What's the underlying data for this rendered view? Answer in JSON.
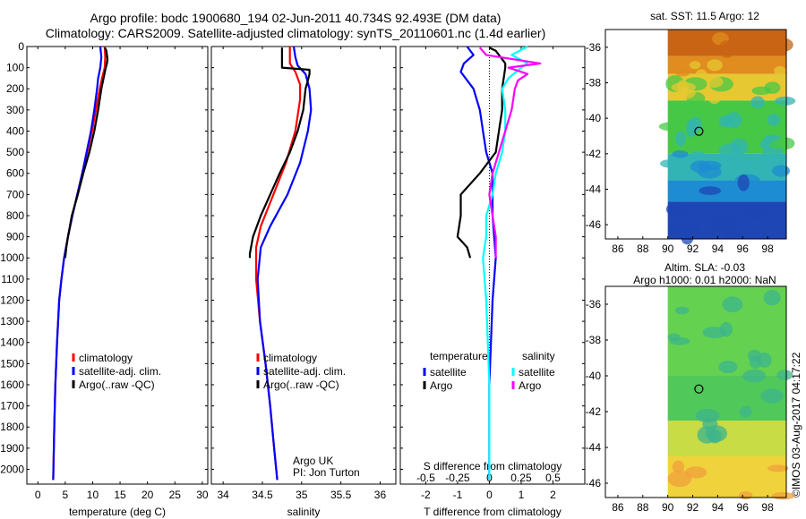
{
  "titles": {
    "line1": "Argo profile: bodc 1900680_194 02-Jun-2011 40.734S 92.493E (DM data)",
    "line2": "Climatology: CARS2009. Satellite-adjusted climatology: synTS_20110601.nc (1.4d earlier)"
  },
  "colors": {
    "red": "#ff0000",
    "blue": "#0000ff",
    "black": "#000000",
    "cyan": "#00ffff",
    "magenta": "#ff00ff"
  },
  "depth_ticks": [
    "0",
    "100",
    "200",
    "300",
    "400",
    "500",
    "600",
    "700",
    "800",
    "900",
    "1000",
    "1100",
    "1200",
    "1300",
    "1400",
    "1500",
    "1600",
    "1700",
    "1800",
    "1900",
    "2000"
  ],
  "chart_data": [
    {
      "type": "line",
      "id": "temperature",
      "xlabel": "temperature (deg C)",
      "ylabel": "",
      "xlim": [
        -2,
        31
      ],
      "ylim": [
        2070,
        0
      ],
      "xticks": [
        "0",
        "5",
        "10",
        "15",
        "20",
        "25",
        "30"
      ],
      "xtick_values": [
        0,
        5,
        10,
        15,
        20,
        25,
        30
      ],
      "legend": {
        "position": "bottom-right",
        "entries": [
          "climatology",
          "satellite-adj. clim.",
          "Argo(..raw -QC)"
        ]
      },
      "series": [
        {
          "name": "climatology",
          "color": "red",
          "depth": [
            0,
            50,
            100,
            150,
            200,
            300,
            400,
            500,
            600,
            700,
            800,
            900,
            1000,
            1100,
            1200,
            1400,
            1600,
            1800,
            2050
          ],
          "values": [
            12.2,
            12.3,
            12.2,
            11.7,
            11.3,
            10.6,
            9.9,
            9.0,
            8.1,
            7.2,
            6.3,
            5.5,
            4.8,
            4.3,
            3.9,
            3.5,
            3.2,
            3.0,
            2.8
          ]
        },
        {
          "name": "satellite-adj. clim.",
          "color": "blue",
          "depth": [
            0,
            50,
            100,
            150,
            200,
            300,
            400,
            500,
            600,
            700,
            800,
            900,
            1000,
            1100,
            1200,
            1400,
            1600,
            1800,
            2050
          ],
          "values": [
            11.4,
            11.6,
            11.4,
            11.0,
            10.8,
            10.3,
            9.7,
            8.9,
            8.1,
            7.2,
            6.3,
            5.5,
            4.8,
            4.3,
            3.9,
            3.5,
            3.2,
            3.0,
            2.8
          ]
        },
        {
          "name": "Argo(..raw -QC)",
          "color": "black",
          "depth": [
            5,
            20,
            40,
            60,
            80,
            100,
            200,
            300,
            400,
            500,
            600,
            700,
            800,
            900,
            950,
            1000
          ],
          "values": [
            12.2,
            12.5,
            12.6,
            12.7,
            12.6,
            12.4,
            11.6,
            11.0,
            10.3,
            9.4,
            8.3,
            7.3,
            6.2,
            5.5,
            5.2,
            5.0
          ]
        }
      ]
    },
    {
      "type": "line",
      "id": "salinity",
      "xlabel": "salinity",
      "xlim": [
        33.85,
        36.2
      ],
      "ylim": [
        2070,
        0
      ],
      "xticks": [
        "34",
        "34.5",
        "35",
        "35.5",
        "36"
      ],
      "xtick_values": [
        34,
        34.5,
        35,
        35.5,
        36
      ],
      "legend": {
        "position": "bottom-right",
        "entries": [
          "climatology",
          "satellite-adj. clim.",
          "Argo(..raw -QC)"
        ]
      },
      "annotations": [
        "Argo UK",
        "PI: Jon Turton"
      ],
      "series": [
        {
          "name": "climatology",
          "color": "red",
          "depth": [
            0,
            50,
            80,
            120,
            180,
            250,
            400,
            550,
            700,
            850,
            950,
            1100,
            1300,
            1500,
            1700,
            1900,
            2050
          ],
          "values": [
            34.85,
            34.85,
            34.85,
            34.92,
            34.98,
            34.98,
            34.92,
            34.8,
            34.64,
            34.48,
            34.42,
            34.42,
            34.47,
            34.54,
            34.6,
            34.65,
            34.69
          ]
        },
        {
          "name": "satellite-adj. clim.",
          "color": "blue",
          "depth": [
            0,
            50,
            90,
            130,
            200,
            300,
            400,
            550,
            700,
            850,
            950,
            1100,
            1300,
            1500,
            1700,
            1900,
            2050
          ],
          "values": [
            34.9,
            34.92,
            34.95,
            35.05,
            35.1,
            35.12,
            35.08,
            34.98,
            34.82,
            34.6,
            34.48,
            34.44,
            34.47,
            34.54,
            34.6,
            34.65,
            34.69
          ]
        },
        {
          "name": "Argo(..raw -QC)",
          "color": "black",
          "depth": [
            5,
            40,
            100,
            110,
            130,
            160,
            200,
            300,
            400,
            500,
            600,
            700,
            800,
            900,
            980,
            1000
          ],
          "values": [
            34.75,
            34.75,
            34.75,
            35.1,
            35.1,
            35.08,
            35.05,
            35.02,
            34.95,
            34.85,
            34.72,
            34.6,
            34.48,
            34.38,
            34.34,
            34.34
          ]
        }
      ]
    },
    {
      "type": "line",
      "id": "differences",
      "xlabel": "T difference from climatology",
      "xlabel2": "S difference from climatology",
      "xlim": [
        -2.8,
        3.0
      ],
      "ylim": [
        2070,
        0
      ],
      "xticks": [
        "-2",
        "-1",
        "0",
        "1",
        "2"
      ],
      "xtick_values": [
        -2,
        -1,
        0,
        1,
        2
      ],
      "xticks_top": [
        "-0.5",
        "-0.25",
        "0",
        "0.25",
        "0.5"
      ],
      "xtick_top_values": [
        -2,
        -1,
        0,
        1,
        2
      ],
      "legend": {
        "position": "bottom",
        "headers": [
          "temperature",
          "salinity"
        ],
        "entries": [
          "satellite",
          "Argo",
          "satellite",
          "Argo"
        ]
      },
      "series": [
        {
          "name": "temperature satellite",
          "color": "blue",
          "depth": [
            0,
            40,
            80,
            120,
            200,
            300,
            400,
            500,
            600,
            700,
            800,
            900,
            1000,
            1200,
            1400,
            1600,
            1800,
            2050
          ],
          "values": [
            -0.7,
            -0.5,
            -0.8,
            -0.9,
            -0.5,
            -0.3,
            -0.2,
            -0.1,
            0.1,
            0.1,
            0.1,
            0.15,
            0.2,
            0.1,
            0.05,
            0.0,
            0.0,
            0.0
          ]
        },
        {
          "name": "temperature Argo",
          "color": "black",
          "depth": [
            5,
            20,
            40,
            60,
            80,
            100,
            200,
            300,
            400,
            500,
            600,
            700,
            800,
            900,
            950,
            1000
          ],
          "values": [
            0.0,
            0.2,
            0.3,
            0.4,
            0.5,
            0.5,
            0.4,
            0.4,
            0.3,
            0.2,
            -0.3,
            -0.9,
            -0.9,
            -1.0,
            -0.7,
            -0.6
          ]
        },
        {
          "name": "salinity satellite",
          "color": "cyan",
          "depth": [
            0,
            40,
            80,
            100,
            150,
            200,
            300,
            400,
            500,
            600,
            700,
            800,
            900,
            1000,
            1200,
            1400,
            1600,
            1800,
            2050
          ],
          "values": [
            1.2,
            0.7,
            1.2,
            1.0,
            0.6,
            0.4,
            0.5,
            0.5,
            0.4,
            0.2,
            0.1,
            -0.1,
            -0.1,
            -0.2,
            -0.1,
            -0.05,
            0.0,
            0.0,
            0.0
          ]
        },
        {
          "name": "salinity Argo",
          "color": "magenta",
          "depth": [
            5,
            40,
            80,
            100,
            130,
            160,
            200,
            300,
            400,
            500,
            600,
            700,
            800,
            900,
            950,
            1000
          ],
          "values": [
            -0.3,
            -0.1,
            1.6,
            0.6,
            1.2,
            0.9,
            0.8,
            0.7,
            0.5,
            0.3,
            0.1,
            0.0,
            0.1,
            0.2,
            0.2,
            0.2
          ]
        }
      ]
    },
    {
      "type": "heatmap",
      "id": "sst-map",
      "title": "sat. SST: 11.5 Argo: 12",
      "xlim": [
        85,
        99.5
      ],
      "ylim": [
        -46.8,
        -35
      ],
      "xticks": [
        "86",
        "88",
        "90",
        "92",
        "94",
        "96",
        "98"
      ],
      "xtick_values": [
        86,
        88,
        90,
        92,
        94,
        96,
        98
      ],
      "yticks": [
        "-36",
        "-38",
        "-40",
        "-42",
        "-44",
        "-46"
      ],
      "ytick_values": [
        -36,
        -38,
        -40,
        -42,
        -44,
        -46
      ],
      "data_extent_lon": [
        90,
        99.5
      ],
      "argo_location": [
        92.493,
        -40.734
      ],
      "bands": [
        {
          "lat": [
            -35,
            -36.5
          ],
          "color": "#c86414"
        },
        {
          "lat": [
            -36.5,
            -37.5
          ],
          "color": "#e08c1e"
        },
        {
          "lat": [
            -37.5,
            -39.0
          ],
          "color": "#e6c832"
        },
        {
          "lat": [
            -39.0,
            -42.0
          ],
          "color": "#46c846"
        },
        {
          "lat": [
            -42.0,
            -43.5
          ],
          "color": "#32b4b4"
        },
        {
          "lat": [
            -43.5,
            -44.7
          ],
          "color": "#1e8cd2"
        },
        {
          "lat": [
            -44.7,
            -46.8
          ],
          "color": "#1e46b4"
        }
      ]
    },
    {
      "type": "heatmap",
      "id": "sla-map",
      "title": "Altim. SLA: -0.03",
      "title2": "Argo h1000: 0.01 h2000: NaN",
      "xlim": [
        85,
        99.5
      ],
      "ylim": [
        -46.8,
        -35
      ],
      "xticks": [
        "86",
        "88",
        "90",
        "92",
        "94",
        "96",
        "98"
      ],
      "xtick_values": [
        86,
        88,
        90,
        92,
        94,
        96,
        98
      ],
      "yticks": [
        "-36",
        "-38",
        "-40",
        "-42",
        "-44",
        "-46"
      ],
      "ytick_values": [
        -36,
        -38,
        -40,
        -42,
        -44,
        -46
      ],
      "data_extent_lon": [
        90,
        99.5
      ],
      "argo_location": [
        92.493,
        -40.734
      ],
      "bands": [
        {
          "lat": [
            -35,
            -40.0
          ],
          "color": "#64d250"
        },
        {
          "lat": [
            -40.0,
            -42.5
          ],
          "color": "#50c85a"
        },
        {
          "lat": [
            -42.5,
            -44.5
          ],
          "color": "#c8dc46"
        },
        {
          "lat": [
            -44.5,
            -46.8
          ],
          "color": "#f0d23c"
        }
      ],
      "blobs_color": "#3cb48c"
    }
  ],
  "stamp": "©IMOS 03-Aug-2017 04:17:22"
}
